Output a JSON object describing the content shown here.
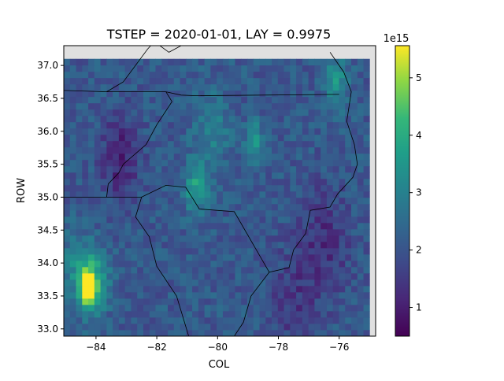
{
  "chart_data": {
    "type": "heatmap",
    "title": "TSTEP = 2020-01-01, LAY = 0.9975",
    "xlabel": "COL",
    "ylabel": "ROW",
    "xlim": [
      -85.06,
      -74.8
    ],
    "ylim": [
      32.89,
      37.3
    ],
    "data_extent": {
      "lon": [
        -85.06,
        -75.0
      ],
      "lat": [
        32.89,
        37.1
      ]
    },
    "grid": {
      "cols": 50,
      "rows": 44
    },
    "xticks": [
      -84,
      -82,
      -80,
      -78,
      -76
    ],
    "xtick_labels": [
      "−84",
      "−82",
      "−80",
      "−78",
      "−76"
    ],
    "yticks": [
      33.0,
      33.5,
      34.0,
      34.5,
      35.0,
      35.5,
      36.0,
      36.5,
      37.0
    ],
    "ytick_labels": [
      "33.0",
      "33.5",
      "34.0",
      "34.5",
      "35.0",
      "35.5",
      "36.0",
      "36.5",
      "37.0"
    ],
    "colorbar": {
      "min": 0.5,
      "max": 5.56,
      "ticks": [
        1,
        2,
        3,
        4,
        5
      ],
      "tick_labels": [
        "1",
        "2",
        "3",
        "4",
        "5"
      ],
      "offset_label": "1e15",
      "colormap": "viridis"
    },
    "field": {
      "base": 2.1,
      "noise": 0.45,
      "hotspots": [
        {
          "lon": -84.3,
          "lat": 33.65,
          "value": 5.5,
          "radius": 0.25
        },
        {
          "lon": -84.1,
          "lat": 33.7,
          "value": 3.9,
          "radius": 0.5
        },
        {
          "lon": -80.7,
          "lat": 35.15,
          "value": 3.7,
          "radius": 0.4
        },
        {
          "lon": -78.8,
          "lat": 35.85,
          "value": 3.6,
          "radius": 0.3
        },
        {
          "lon": -80.2,
          "lat": 36.05,
          "value": 3.0,
          "radius": 0.6
        },
        {
          "lon": -76.1,
          "lat": 36.75,
          "value": 3.4,
          "radius": 0.4
        },
        {
          "lon": -84.7,
          "lat": 34.0,
          "value": 3.0,
          "radius": 0.5
        }
      ],
      "lows": [
        {
          "lon": -83.2,
          "lat": 35.6,
          "value": 1.0,
          "radius": 0.6
        },
        {
          "lon": -76.5,
          "lat": 34.3,
          "value": 1.3,
          "radius": 0.8
        },
        {
          "lon": -77.5,
          "lat": 33.4,
          "value": 1.5,
          "radius": 0.8
        }
      ]
    },
    "boundaries": [
      [
        [
          -85.06,
          36.62
        ],
        [
          -83.65,
          36.6
        ],
        [
          -81.7,
          36.6
        ],
        [
          -81.2,
          36.55
        ],
        [
          -80.7,
          36.54
        ],
        [
          -76.0,
          36.56
        ]
      ],
      [
        [
          -83.65,
          36.6
        ],
        [
          -83.1,
          36.75
        ],
        [
          -82.3,
          37.25
        ],
        [
          -82.2,
          37.3
        ]
      ],
      [
        [
          -81.9,
          37.3
        ],
        [
          -81.6,
          37.2
        ],
        [
          -81.2,
          37.3
        ]
      ],
      [
        [
          -83.65,
          35.0
        ],
        [
          -83.6,
          35.2
        ],
        [
          -83.25,
          35.37
        ],
        [
          -83.1,
          35.5
        ],
        [
          -82.35,
          35.8
        ],
        [
          -82.0,
          36.1
        ],
        [
          -81.5,
          36.45
        ],
        [
          -81.7,
          36.6
        ]
      ],
      [
        [
          -85.06,
          35.0
        ],
        [
          -83.65,
          35.0
        ],
        [
          -82.5,
          35.0
        ],
        [
          -81.7,
          35.18
        ],
        [
          -81.05,
          35.15
        ],
        [
          -80.6,
          34.82
        ],
        [
          -79.45,
          34.78
        ],
        [
          -78.3,
          33.86
        ],
        [
          -77.65,
          33.93
        ],
        [
          -77.5,
          34.2
        ],
        [
          -77.1,
          34.45
        ],
        [
          -76.95,
          34.8
        ],
        [
          -76.3,
          34.85
        ],
        [
          -76.05,
          35.05
        ],
        [
          -75.55,
          35.3
        ],
        [
          -75.4,
          35.5
        ],
        [
          -75.5,
          35.8
        ],
        [
          -75.75,
          36.15
        ],
        [
          -75.6,
          36.6
        ],
        [
          -75.85,
          36.9
        ],
        [
          -76.3,
          37.2
        ]
      ],
      [
        [
          -82.5,
          35.0
        ],
        [
          -82.7,
          34.7
        ],
        [
          -82.25,
          34.4
        ],
        [
          -82.0,
          33.95
        ],
        [
          -81.35,
          33.5
        ],
        [
          -80.95,
          32.89
        ]
      ],
      [
        [
          -78.3,
          33.86
        ],
        [
          -78.9,
          33.5
        ],
        [
          -79.15,
          33.1
        ],
        [
          -79.45,
          32.89
        ]
      ]
    ]
  }
}
